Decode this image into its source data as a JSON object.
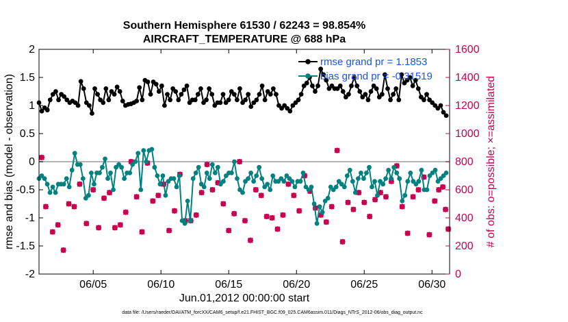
{
  "chart_data": {
    "type": "line",
    "title_line1": "Southern Hemisphere 61530 / 62243 = 98.854%",
    "title_line2": "AIRCRAFT_TEMPERATURE @ 688 hPa",
    "xlabel": "Jun.01,2012 00:00:00 start",
    "ylabel_left": "rmse and bias (model - observation)",
    "ylabel_right": "# of obs: o=possible; ×=assimilated",
    "xlim": [
      1,
      31.3
    ],
    "ylim": [
      -2,
      2
    ],
    "ylim_right": [
      0,
      1600
    ],
    "x_ticks": [
      {
        "value": 5,
        "label": "06/05"
      },
      {
        "value": 10,
        "label": "06/10"
      },
      {
        "value": 15,
        "label": "06/15"
      },
      {
        "value": 20,
        "label": "06/20"
      },
      {
        "value": 25,
        "label": "06/25"
      },
      {
        "value": 30,
        "label": "06/30"
      }
    ],
    "y_ticks": [
      {
        "value": 2,
        "label": "2"
      },
      {
        "value": 1.5,
        "label": "1.5"
      },
      {
        "value": 1,
        "label": "1"
      },
      {
        "value": 0.5,
        "label": "0.5"
      },
      {
        "value": 0,
        "label": "0"
      },
      {
        "value": -0.5,
        "label": "-0.5"
      },
      {
        "value": -1,
        "label": "-1"
      },
      {
        "value": -1.5,
        "label": "-1.5"
      },
      {
        "value": -2,
        "label": "-2"
      }
    ],
    "y_ticks_right": [
      {
        "value": 1600,
        "label": "1600"
      },
      {
        "value": 1400,
        "label": "1400"
      },
      {
        "value": 1200,
        "label": "1200"
      },
      {
        "value": 1000,
        "label": "1000"
      },
      {
        "value": 800,
        "label": "800"
      },
      {
        "value": 600,
        "label": "600"
      },
      {
        "value": 400,
        "label": "400"
      },
      {
        "value": 200,
        "label": "200"
      },
      {
        "value": 0,
        "label": "0"
      }
    ],
    "legend": [
      {
        "name": "rmse grand pr = 1.1853",
        "color": "#000000"
      },
      {
        "name": "bias grand pr = -0.31519",
        "color": "#00807f"
      }
    ],
    "colors": {
      "rmse": "#000000",
      "bias": "#00807f",
      "obs": "#c8004f",
      "zero": "#b3b3b3"
    },
    "rmse": [
      1.05,
      0.9,
      0.96,
      0.92,
      1.1,
      1.2,
      1.25,
      1.1,
      1.2,
      1.16,
      1.1,
      1.05,
      1.08,
      1.05,
      1.0,
      1.43,
      1.3,
      1.05,
      1.0,
      0.86,
      1.3,
      1.2,
      1.1,
      1.05,
      1.3,
      1.1,
      1.25,
      1.2,
      1.33,
      1.25,
      1.08,
      1.0,
      1.02,
      1.03,
      1.05,
      1.08,
      1.32,
      1.1,
      1.45,
      1.42,
      1.2,
      1.42,
      1.38,
      1.25,
      1.35,
      1.0,
      1.2,
      1.1,
      1.3,
      1.25,
      1.1,
      1.2,
      1.28,
      1.35,
      1.05,
      1.1,
      1.1,
      1.2,
      1.3,
      1.05,
      1.1,
      1.3,
      1.2,
      1.0,
      1.05,
      1.05,
      1.2,
      1.05,
      1.1,
      1.25,
      1.2,
      1.1,
      1.3,
      1.05,
      1.1,
      1.2,
      0.98,
      1.05,
      1.1,
      1.2,
      1.35,
      1.1,
      1.25,
      1.2,
      1.3,
      1.2,
      1.0,
      0.95,
      1.0,
      0.95,
      0.9,
      1.0,
      1.05,
      1.1,
      1.2,
      1.35,
      1.4,
      1.5,
      1.35,
      1.25,
      1.35,
      1.65,
      1.55,
      1.45,
      1.3,
      1.35,
      1.3,
      1.3,
      1.35,
      1.25,
      1.15,
      1.2,
      1.35,
      1.5,
      1.35,
      1.25,
      1.15,
      1.2,
      1.1,
      1.25,
      1.35,
      1.3,
      1.15,
      1.2,
      1.55,
      1.3,
      1.1,
      1.2,
      1.3,
      1.1,
      1.55,
      1.4,
      1.45,
      1.5,
      1.35,
      1.45,
      1.3,
      1.15,
      1.1,
      1.2,
      1.1,
      1.05,
      1.0,
      0.95,
      1.0,
      0.88,
      0.82
    ],
    "bias": [
      -0.3,
      -0.25,
      -0.3,
      -0.4,
      -0.55,
      -0.45,
      -0.55,
      -0.4,
      -0.4,
      -0.4,
      -0.3,
      -0.45,
      -0.15,
      0.15,
      -0.05,
      -0.05,
      -0.3,
      -0.65,
      -0.6,
      -0.2,
      -0.4,
      -0.2,
      -0.2,
      -0.1,
      0.05,
      -0.3,
      -0.2,
      -0.5,
      -0.1,
      -0.05,
      -0.1,
      -0.3,
      -0.2,
      -0.2,
      -0.05,
      0.0,
      0.15,
      -0.5,
      0.2,
      0.0,
      0.2,
      0.22,
      -0.1,
      -0.25,
      -0.4,
      -0.25,
      -0.6,
      -0.35,
      -0.3,
      -0.3,
      -0.45,
      -0.25,
      -1.05,
      -1.1,
      -0.7,
      -1.05,
      -0.3,
      -0.2,
      -0.1,
      -0.4,
      -0.45,
      -0.2,
      -0.3,
      -0.05,
      -0.2,
      -0.1,
      -0.4,
      -0.35,
      -0.25,
      -0.2,
      -0.2,
      0.0,
      -0.3,
      -0.5,
      -0.55,
      -0.35,
      -0.3,
      -0.2,
      -0.35,
      -0.25,
      -0.1,
      -0.3,
      -0.45,
      -0.4,
      -0.5,
      -0.25,
      -0.35,
      -0.35,
      -0.3,
      -0.35,
      -0.25,
      -0.3,
      -0.35,
      -0.45,
      -0.35,
      -0.35,
      -0.2,
      -0.45,
      -0.5,
      -0.45,
      -0.75,
      -1.1,
      -0.8,
      -0.9,
      -0.7,
      -0.65,
      -0.45,
      -0.5,
      -0.45,
      -0.35,
      -0.4,
      -0.45,
      -0.25,
      -0.15,
      -0.35,
      -0.55,
      -0.3,
      -0.2,
      -0.3,
      -0.2,
      -0.1,
      -0.45,
      -0.35,
      -0.6,
      -0.35,
      -0.4,
      -0.3,
      -0.15,
      -0.3,
      -0.1,
      -0.2,
      -0.3,
      -0.7,
      -0.6,
      -0.35,
      -0.2,
      -0.35,
      -0.4,
      -0.35,
      -0.15,
      -0.5,
      -0.5,
      -0.25,
      -0.2,
      -0.15,
      -0.35,
      -0.3,
      -0.25,
      -0.2
    ],
    "obs_x": [
      1.2,
      1.5,
      2.0,
      2.4,
      2.8,
      3.2,
      3.6,
      4.0,
      4.5,
      5.0,
      5.4,
      5.8,
      6.2,
      6.6,
      7.0,
      7.4,
      7.8,
      8.2,
      8.6,
      9.0,
      9.4,
      9.8,
      10.2,
      10.6,
      11.0,
      11.4,
      11.8,
      12.2,
      12.6,
      13.0,
      13.4,
      13.8,
      14.2,
      14.6,
      15.0,
      15.4,
      15.8,
      16.2,
      16.6,
      17.0,
      17.4,
      17.8,
      18.2,
      18.6,
      19.0,
      19.4,
      19.8,
      20.2,
      20.6,
      21.0,
      21.4,
      21.8,
      22.2,
      22.6,
      23.0,
      23.4,
      23.8,
      24.2,
      24.6,
      25.0,
      25.4,
      25.8,
      26.2,
      26.6,
      27.0,
      27.4,
      27.8,
      28.2,
      28.6,
      29.0,
      29.4,
      29.8,
      30.2,
      30.5,
      30.8,
      31.0,
      31.2
    ],
    "obs_counts": [
      830,
      480,
      300,
      350,
      170,
      500,
      480,
      640,
      360,
      600,
      330,
      540,
      580,
      330,
      350,
      440,
      800,
      550,
      300,
      790,
      520,
      560,
      640,
      310,
      450,
      710,
      380,
      380,
      420,
      580,
      780,
      600,
      650,
      500,
      310,
      430,
      800,
      380,
      240,
      600,
      560,
      410,
      400,
      320,
      420,
      640,
      560,
      450,
      700,
      590,
      470,
      420,
      370,
      480,
      880,
      230,
      510,
      460,
      580,
      510,
      410,
      530,
      580,
      550,
      660,
      770,
      480,
      290,
      550,
      600,
      690,
      280,
      520,
      600,
      620,
      460,
      320
    ]
  },
  "footer": "data file: /Users/raeder/DAI/ATM_forcXX/CAM6_setup/f.e21.FHIST_BGC.f09_025.CAM6assim.011/Diags_NTrS_2012-06/obs_diag_output.nc"
}
